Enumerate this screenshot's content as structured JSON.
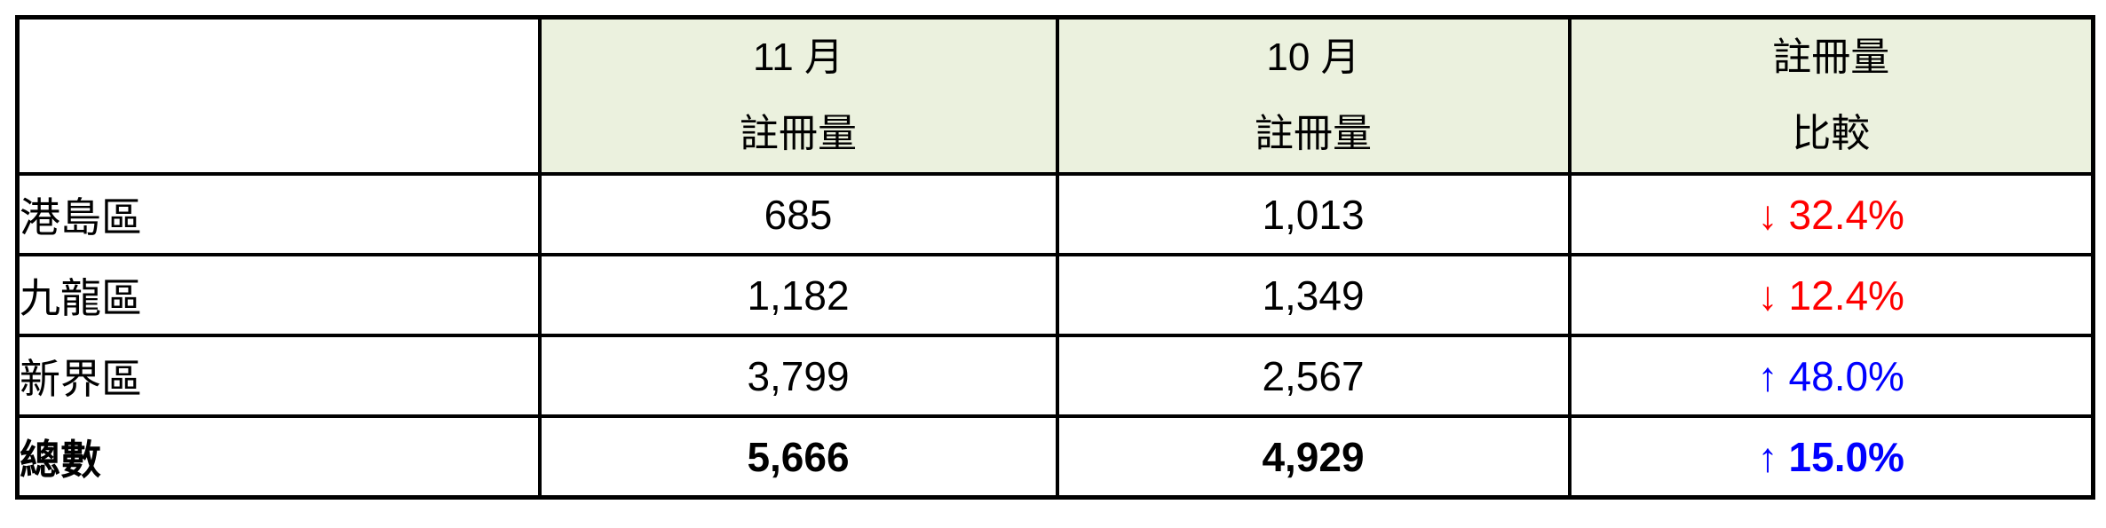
{
  "table": {
    "header": {
      "col1": {
        "line1": "",
        "line2": ""
      },
      "col2": {
        "line1": "11 月",
        "line2": "註冊量"
      },
      "col3": {
        "line1": "10 月",
        "line2": "註冊量"
      },
      "col4": {
        "line1": "註冊量",
        "line2": "比較"
      }
    },
    "rows": [
      {
        "district": "港島區",
        "nov": "685",
        "oct": "1,013",
        "arrow": "↓",
        "change": "32.4%",
        "direction": "down",
        "bold": false
      },
      {
        "district": "九龍區",
        "nov": "1,182",
        "oct": "1,349",
        "arrow": "↓",
        "change": "12.4%",
        "direction": "down",
        "bold": false
      },
      {
        "district": "新界區",
        "nov": "3,799",
        "oct": "2,567",
        "arrow": "↑",
        "change": "48.0%",
        "direction": "up",
        "bold": false
      },
      {
        "district": "總數",
        "nov": "5,666",
        "oct": "4,929",
        "arrow": "↑",
        "change": "15.0%",
        "direction": "up",
        "bold": true
      }
    ],
    "colors": {
      "header_bg": "#EBF1DE",
      "border": "#000000",
      "down": "#FF0000",
      "up": "#0000FF"
    }
  },
  "chart_data": {
    "type": "table",
    "title": "",
    "columns": [
      "",
      "11 月 註冊量",
      "10 月 註冊量",
      "註冊量 比較"
    ],
    "rows": [
      [
        "港島區",
        685,
        1013,
        "↓ 32.4%"
      ],
      [
        "九龍區",
        1182,
        1349,
        "↓ 12.4%"
      ],
      [
        "新界區",
        3799,
        2567,
        "↑ 48.0%"
      ],
      [
        "總數",
        5666,
        4929,
        "↑ 15.0%"
      ]
    ],
    "notes": "decreases shown in red with down arrow, increases in blue with up arrow; totals row bold; header row light green"
  }
}
